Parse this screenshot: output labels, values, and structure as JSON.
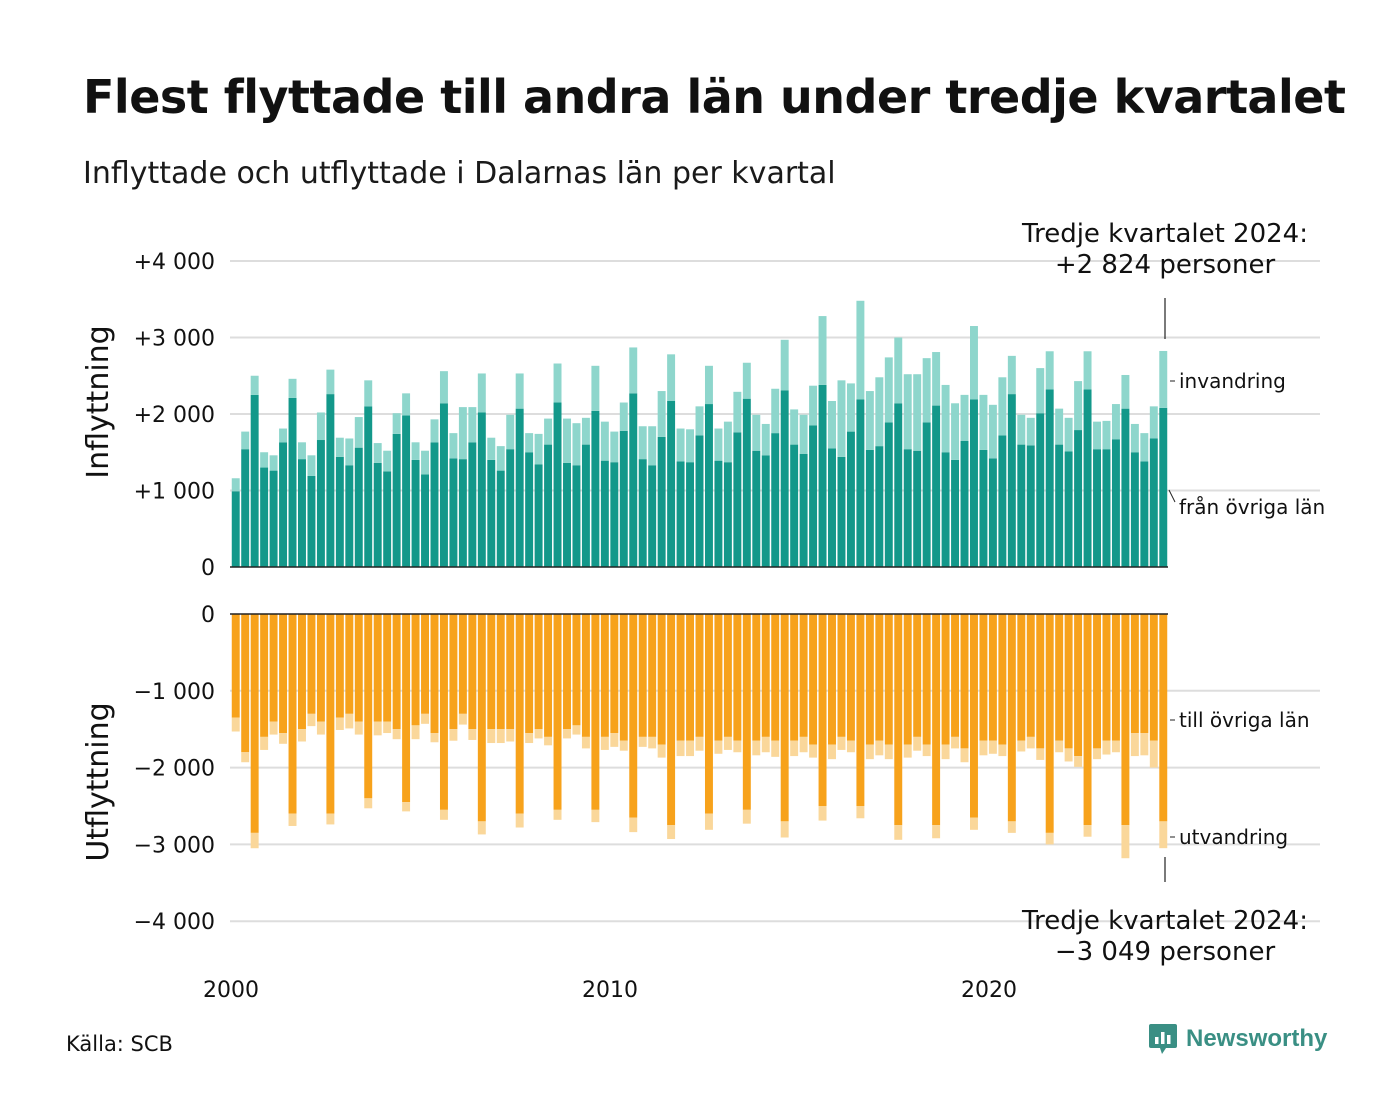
{
  "header": {
    "title": "Flest flyttade till andra län under tredje kvartalet",
    "subtitle": "Inflyttade och utflyttade i Dalarnas län per kvartal"
  },
  "footer": {
    "source": "Källa: SCB",
    "brand": "Newsworthy"
  },
  "colors": {
    "inflow_counties": "#13988a",
    "inflow_immigration": "#8ed6cc",
    "outflow_counties": "#f7a21b",
    "outflow_emigration": "#fad79a",
    "grid": "#dddddd",
    "axis": "#222222"
  },
  "chart_data": {
    "type": "bar",
    "stacked": true,
    "grid": true,
    "x_ticks": [
      "2000",
      "2010",
      "2020"
    ],
    "top_panel": {
      "ylabel": "Inflyttning",
      "ylim": [
        0,
        4000
      ],
      "ticks": [
        0,
        1000,
        2000,
        3000,
        4000
      ],
      "tick_labels": [
        "0",
        "+1 000",
        "+2 000",
        "+3 000",
        "+4 000"
      ],
      "series_labels": [
        "invandring",
        "från övriga län"
      ],
      "annotation_line1": "Tredje kvartalet 2024:",
      "annotation_line2": "+2 824 personer"
    },
    "bottom_panel": {
      "ylabel": "Utflyttning",
      "ylim": [
        -4000,
        0
      ],
      "ticks": [
        0,
        -1000,
        -2000,
        -3000,
        -4000
      ],
      "tick_labels": [
        "0",
        "−1 000",
        "−2 000",
        "−3 000",
        "−4 000"
      ],
      "series_labels": [
        "till övriga län",
        "utvandring"
      ],
      "annotation_line1": "Tredje kvartalet 2024:",
      "annotation_line2": "−3 049 personer"
    },
    "quarters": [
      "2000 K1",
      "2000 K2",
      "2000 K3",
      "2000 K4",
      "2001 K1",
      "2001 K2",
      "2001 K3",
      "2001 K4",
      "2002 K1",
      "2002 K2",
      "2002 K3",
      "2002 K4",
      "2003 K1",
      "2003 K2",
      "2003 K3",
      "2003 K4",
      "2004 K1",
      "2004 K2",
      "2004 K3",
      "2004 K4",
      "2005 K1",
      "2005 K2",
      "2005 K3",
      "2005 K4",
      "2006 K1",
      "2006 K2",
      "2006 K3",
      "2006 K4",
      "2007 K1",
      "2007 K2",
      "2007 K3",
      "2007 K4",
      "2008 K1",
      "2008 K2",
      "2008 K3",
      "2008 K4",
      "2009 K1",
      "2009 K2",
      "2009 K3",
      "2009 K4",
      "2010 K1",
      "2010 K2",
      "2010 K3",
      "2010 K4",
      "2011 K1",
      "2011 K2",
      "2011 K3",
      "2011 K4",
      "2012 K1",
      "2012 K2",
      "2012 K3",
      "2012 K4",
      "2013 K1",
      "2013 K2",
      "2013 K3",
      "2013 K4",
      "2014 K1",
      "2014 K2",
      "2014 K3",
      "2014 K4",
      "2015 K1",
      "2015 K2",
      "2015 K3",
      "2015 K4",
      "2016 K1",
      "2016 K2",
      "2016 K3",
      "2016 K4",
      "2017 K1",
      "2017 K2",
      "2017 K3",
      "2017 K4",
      "2018 K1",
      "2018 K2",
      "2018 K3",
      "2018 K4",
      "2019 K1",
      "2019 K2",
      "2019 K3",
      "2019 K4",
      "2020 K1",
      "2020 K2",
      "2020 K3",
      "2020 K4",
      "2021 K1",
      "2021 K2",
      "2021 K3",
      "2021 K4",
      "2022 K1",
      "2022 K2",
      "2022 K3",
      "2022 K4",
      "2023 K1",
      "2023 K2",
      "2023 K3",
      "2023 K4",
      "2024 K1",
      "2024 K2",
      "2024 K3"
    ],
    "series": [
      {
        "name": "från övriga län",
        "values": [
          990,
          1540,
          2250,
          1300,
          1260,
          1630,
          2210,
          1410,
          1190,
          1660,
          2260,
          1440,
          1330,
          1560,
          2100,
          1360,
          1250,
          1740,
          1980,
          1400,
          1210,
          1630,
          2140,
          1420,
          1410,
          1630,
          2020,
          1400,
          1260,
          1540,
          2070,
          1500,
          1340,
          1600,
          2150,
          1360,
          1330,
          1600,
          2040,
          1390,
          1370,
          1780,
          2270,
          1410,
          1330,
          1700,
          2170,
          1380,
          1370,
          1720,
          2130,
          1390,
          1370,
          1760,
          2200,
          1520,
          1460,
          1750,
          2310,
          1600,
          1480,
          1850,
          2380,
          1550,
          1440,
          1770,
          2190,
          1530,
          1580,
          1890,
          2140,
          1540,
          1520,
          1890,
          2110,
          1500,
          1400,
          1650,
          2190,
          1530,
          1420,
          1720,
          2260,
          1600,
          1590,
          2010,
          2320,
          1600,
          1510,
          1790,
          2320,
          1540,
          1540,
          1670,
          2070,
          1500,
          1380,
          1680,
          2080
        ]
      },
      {
        "name": "invandring",
        "values": [
          170,
          230,
          250,
          200,
          200,
          180,
          250,
          220,
          270,
          360,
          320,
          250,
          350,
          400,
          340,
          260,
          270,
          270,
          290,
          230,
          310,
          300,
          420,
          330,
          680,
          460,
          510,
          290,
          320,
          450,
          460,
          250,
          400,
          340,
          510,
          580,
          550,
          350,
          590,
          510,
          400,
          370,
          600,
          430,
          510,
          600,
          610,
          430,
          430,
          380,
          500,
          420,
          530,
          530,
          470,
          470,
          410,
          580,
          660,
          460,
          510,
          520,
          900,
          620,
          1000,
          630,
          1290,
          770,
          900,
          850,
          860,
          980,
          1000,
          840,
          700,
          880,
          740,
          600,
          960,
          720,
          700,
          760,
          500,
          390,
          360,
          590,
          500,
          470,
          440,
          640,
          500,
          360,
          370,
          460,
          440,
          370,
          370,
          420,
          744
        ]
      },
      {
        "name": "till övriga län",
        "values": [
          1350,
          1800,
          2850,
          1600,
          1400,
          1550,
          2600,
          1500,
          1300,
          1400,
          2600,
          1350,
          1300,
          1400,
          2400,
          1400,
          1400,
          1500,
          2450,
          1450,
          1300,
          1550,
          2550,
          1500,
          1300,
          1500,
          2700,
          1500,
          1500,
          1500,
          2600,
          1550,
          1500,
          1600,
          2550,
          1500,
          1450,
          1600,
          2550,
          1600,
          1550,
          1650,
          2650,
          1600,
          1600,
          1700,
          2750,
          1650,
          1650,
          1600,
          2600,
          1650,
          1600,
          1650,
          2550,
          1650,
          1600,
          1650,
          2700,
          1650,
          1600,
          1700,
          2500,
          1700,
          1600,
          1650,
          2500,
          1700,
          1650,
          1700,
          2750,
          1700,
          1600,
          1700,
          2750,
          1700,
          1600,
          1750,
          2650,
          1650,
          1650,
          1700,
          2700,
          1650,
          1600,
          1750,
          2850,
          1650,
          1750,
          1850,
          2750,
          1750,
          1650,
          1650,
          2750,
          1550,
          1550,
          1650,
          2700
        ]
      },
      {
        "name": "utvandring",
        "values": [
          180,
          130,
          200,
          170,
          170,
          140,
          160,
          160,
          160,
          170,
          140,
          160,
          190,
          170,
          130,
          180,
          150,
          130,
          120,
          180,
          130,
          120,
          130,
          150,
          140,
          140,
          170,
          180,
          180,
          160,
          180,
          130,
          120,
          110,
          130,
          120,
          120,
          150,
          160,
          170,
          180,
          130,
          190,
          130,
          150,
          170,
          180,
          200,
          200,
          180,
          210,
          170,
          170,
          150,
          180,
          190,
          200,
          210,
          210,
          200,
          200,
          170,
          190,
          190,
          170,
          150,
          160,
          190,
          190,
          190,
          190,
          170,
          180,
          150,
          170,
          190,
          150,
          180,
          160,
          190,
          170,
          150,
          150,
          140,
          150,
          150,
          150,
          150,
          170,
          140,
          150,
          140,
          180,
          150,
          430,
          300,
          290,
          350,
          349
        ]
      }
    ]
  }
}
